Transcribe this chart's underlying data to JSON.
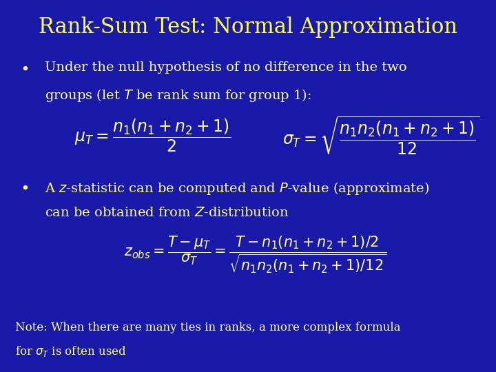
{
  "background_color": "#1a1aaa",
  "title": "Rank-Sum Test: Normal Approximation",
  "title_color": "#ffff44",
  "title_fontsize": 22,
  "text_color": "#ffff88",
  "note_color": "#ffff88",
  "bullet1_line1": "Under the null hypothesis of no difference in the two",
  "bullet1_line2": "groups (let $T$ be rank sum for group 1):",
  "bullet2_line1": "A $z$-statistic can be computed and $P$-value (approximate)",
  "bullet2_line2": "can be obtained from $Z$-distribution",
  "note_line1": "Note: When there are many ties in ranks, a more complex formula",
  "note_line2": "for $\\sigma_T$ is often used",
  "body_fontsize": 14,
  "formula_fontsize": 15,
  "note_fontsize": 12
}
